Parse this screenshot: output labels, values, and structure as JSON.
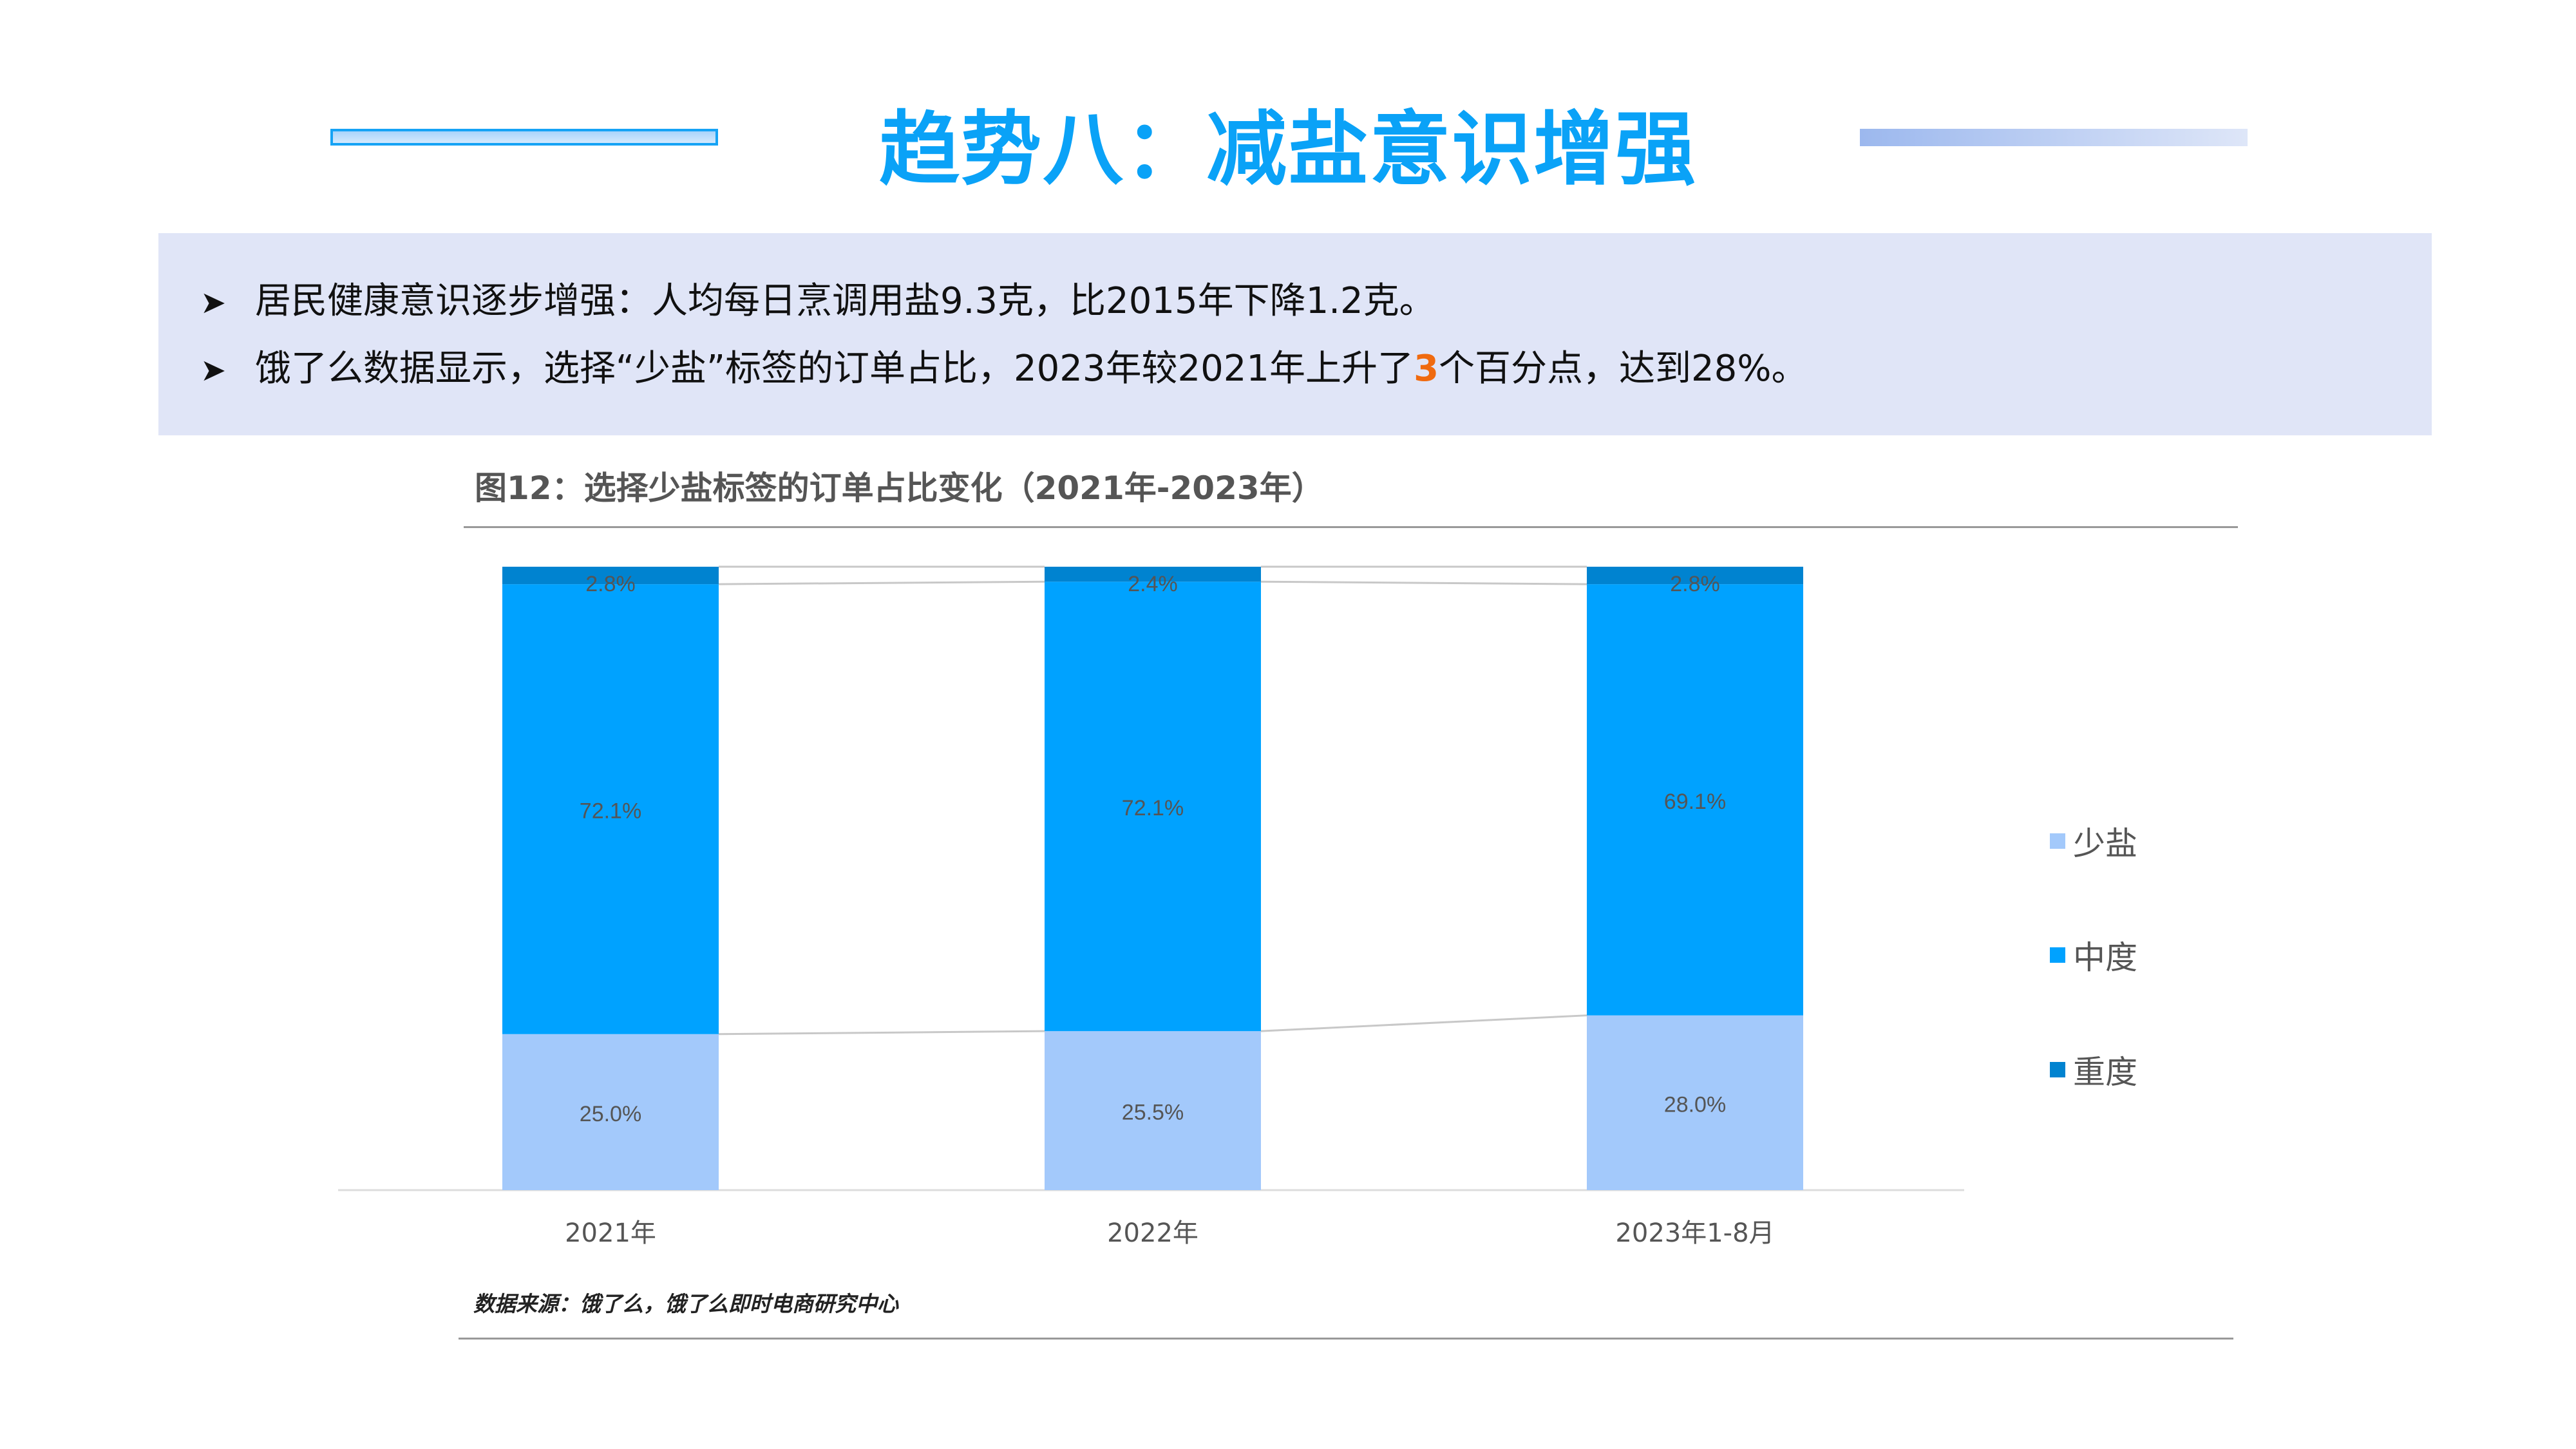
{
  "title": "趋势八：减盐意识增强",
  "summary": {
    "bullet1": "居民健康意识逐步增强：人均每日烹调用盐9.3克，比2015年下降1.2克。",
    "bullet2_pre": "饿了么数据显示，选择“少盐”标签的订单占比，2023年较2021年上升了",
    "bullet2_highlight": "3",
    "bullet2_post": "个百分点，达到28%。"
  },
  "source": "数据来源：饿了么，饿了么即时电商研究中心",
  "colors": {
    "light": "#A3C9FB",
    "mid": "#00A2FF",
    "dark": "#0083D0",
    "highlight": "#F06A0F"
  },
  "chart_data": {
    "type": "bar",
    "stacked": true,
    "title": "图12：选择少盐标签的订单占比变化（2021年-2023年）",
    "categories": [
      "2021年",
      "2022年",
      "2023年1-8月"
    ],
    "series": [
      {
        "name": "少盐",
        "values": [
          25.0,
          25.5,
          28.0
        ],
        "labels": [
          "25.0%",
          "25.5%",
          "28.0%"
        ]
      },
      {
        "name": "中度",
        "values": [
          72.1,
          72.1,
          69.1
        ],
        "labels": [
          "72.1%",
          "72.1%",
          "69.1%"
        ]
      },
      {
        "name": "重度",
        "values": [
          2.8,
          2.4,
          2.8
        ],
        "labels": [
          "2.8%",
          "2.4%",
          "2.8%"
        ]
      }
    ],
    "ylim": [
      0,
      100
    ],
    "legend": "right"
  }
}
